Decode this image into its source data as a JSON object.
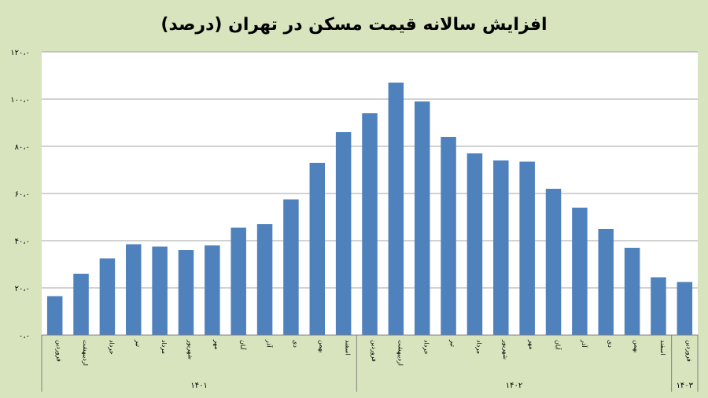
{
  "chart_data": {
    "type": "bar",
    "title": "افزایش سالانه قیمت مسکن در تهران  (درصد)",
    "xlabel": "",
    "ylabel": "",
    "ylim": [
      0,
      120
    ],
    "yticks": [
      0,
      20,
      40,
      60,
      80,
      100,
      120
    ],
    "ytick_labels": [
      "۰،۰",
      "۲۰،۰",
      "۴۰،۰",
      "۶۰،۰",
      "۸۰،۰",
      "۱۰۰،۰",
      "۱۲۰،۰"
    ],
    "grid": true,
    "bar_color": "#4f81bd",
    "plot_background": "#ffffff",
    "page_background": "#d7e4bd",
    "categories": [
      "فروردین",
      "اردیبهشت",
      "خرداد",
      "تیر",
      "مرداد",
      "شهریور",
      "مهر",
      "آبان",
      "آذر",
      "دی",
      "بهمن",
      "اسفند",
      "فروردین",
      "اردیبهشت",
      "خرداد",
      "تیر",
      "مرداد",
      "شهریور",
      "مهر",
      "آبان",
      "آذر",
      "دی",
      "بهمن",
      "اسفند",
      "فروردین"
    ],
    "values": [
      16.5,
      26,
      32.5,
      38.5,
      37.5,
      36,
      38,
      45.5,
      47,
      57.5,
      73,
      86,
      94,
      107,
      99,
      84,
      77,
      74,
      73.5,
      62,
      54,
      45,
      37,
      24.5,
      22.5
    ],
    "groups": [
      {
        "label": "۱۴۰۱",
        "count": 12
      },
      {
        "label": "۱۴۰۲",
        "count": 12
      },
      {
        "label": "۱۴۰۳",
        "count": 1
      }
    ]
  }
}
